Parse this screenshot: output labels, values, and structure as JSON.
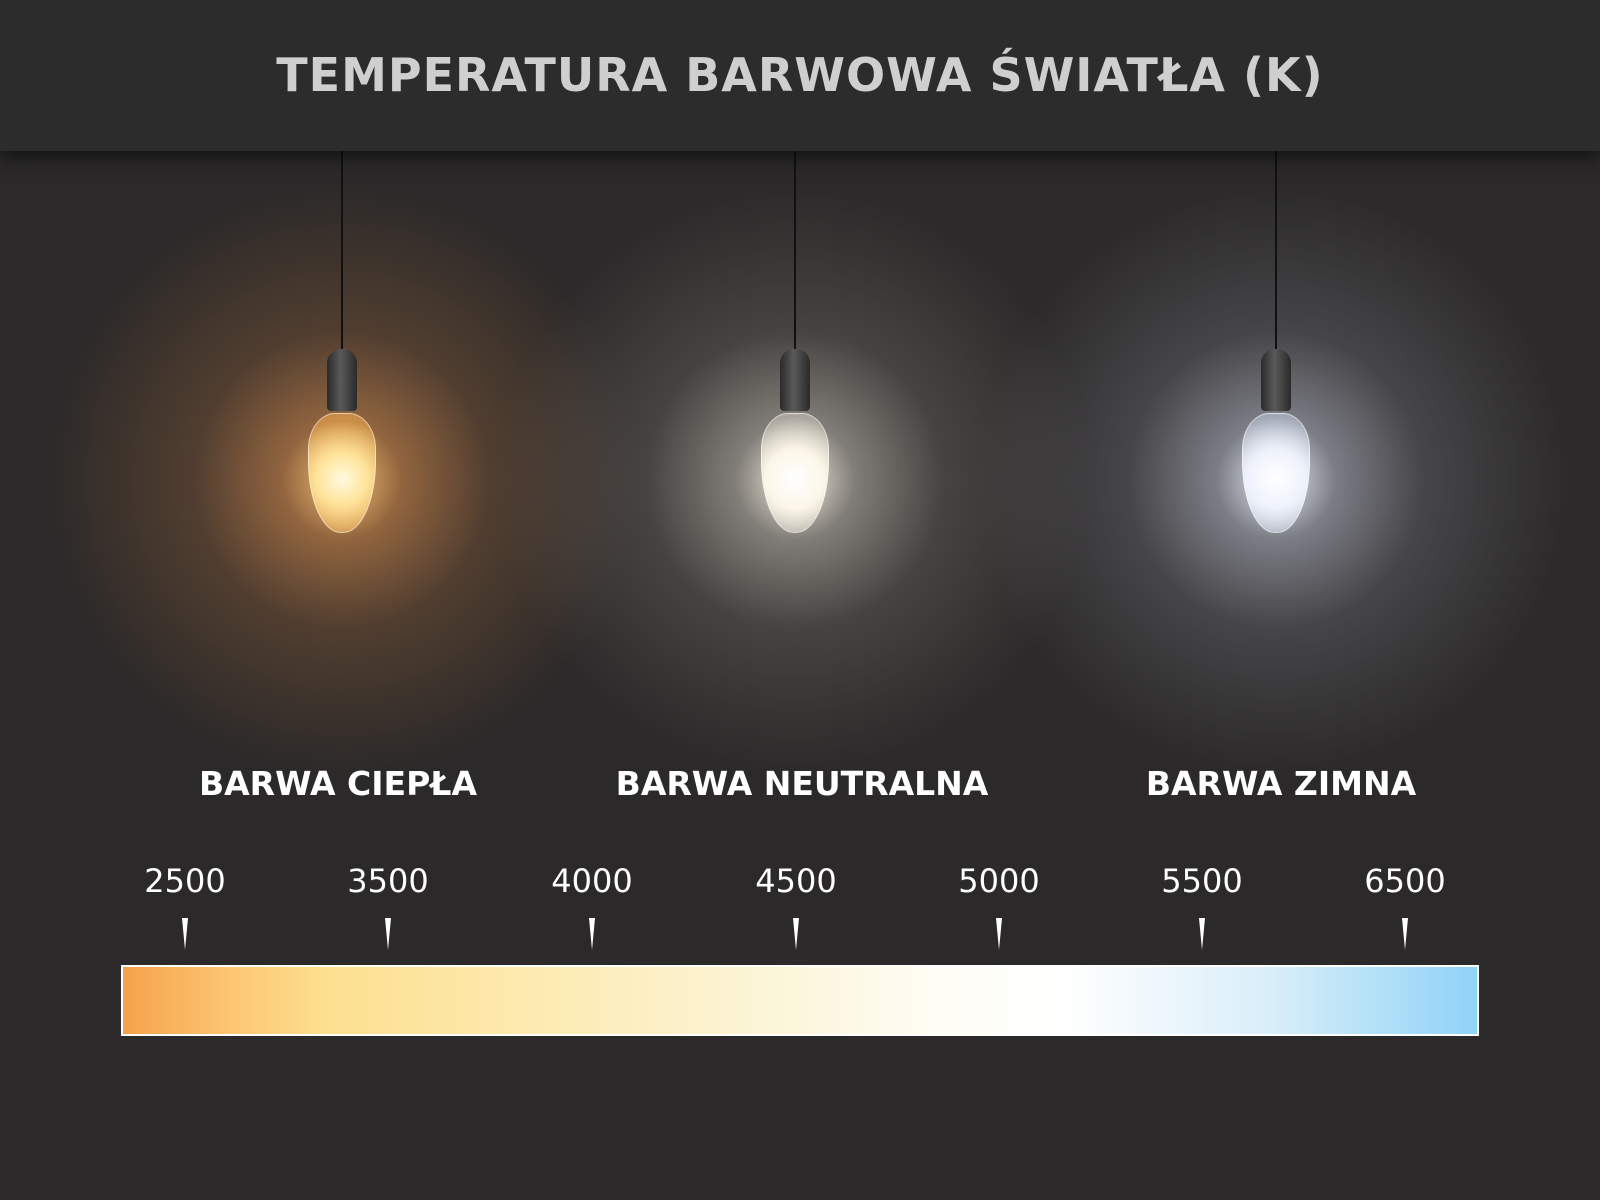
{
  "title": "TEMPERATURA BARWOWA ŚWIATŁA (K)",
  "categories": [
    {
      "label": "BARWA CIEPŁA",
      "glow_color": "#f5b060"
    },
    {
      "label": "BARWA NEUTRALNA",
      "glow_color": "#f4efe2"
    },
    {
      "label": "BARWA ZIMNA",
      "glow_color": "#e6eefc"
    }
  ],
  "scale": {
    "ticks": [
      "2500",
      "3500",
      "4000",
      "4500",
      "5000",
      "5500",
      "6500"
    ],
    "gradient_colors": [
      "#f5a24a",
      "#fde08f",
      "#fbf5d8",
      "#ffffff",
      "#8fd3f7"
    ]
  }
}
